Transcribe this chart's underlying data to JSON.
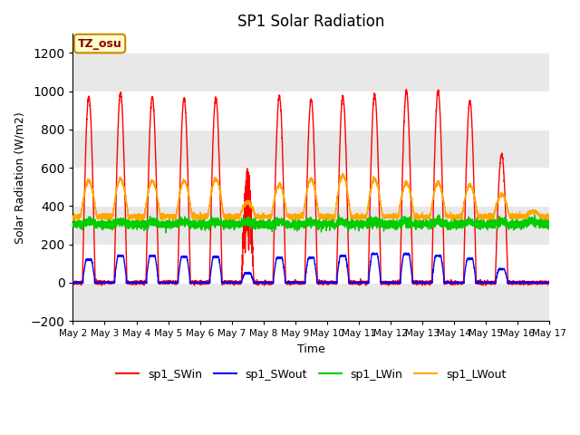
{
  "title": "SP1 Solar Radiation",
  "ylabel": "Solar Radiation (W/m2)",
  "xlabel": "Time",
  "ylim": [
    -200,
    1300
  ],
  "yticks": [
    -200,
    0,
    200,
    400,
    600,
    800,
    1000,
    1200
  ],
  "start_day": 2,
  "end_day": 17,
  "n_days": 15,
  "colors": {
    "SWin": "#ff0000",
    "SWout": "#0000ff",
    "LWin": "#00cc00",
    "LWout": "#ffa500"
  },
  "legend_labels": [
    "sp1_SWin",
    "sp1_SWout",
    "sp1_LWin",
    "sp1_LWout"
  ],
  "tz_label": "TZ_osu",
  "bg_gray": "#e8e8e8",
  "bg_white": "#ffffff",
  "tick_labels": [
    "May 2",
    "May 3",
    "May 4",
    "May 5",
    "May 6",
    "May 7",
    "May 8",
    "May 9",
    "May 10",
    "May 11",
    "May 12",
    "May 13",
    "May 14",
    "May 15",
    "May 16",
    "May 17"
  ]
}
